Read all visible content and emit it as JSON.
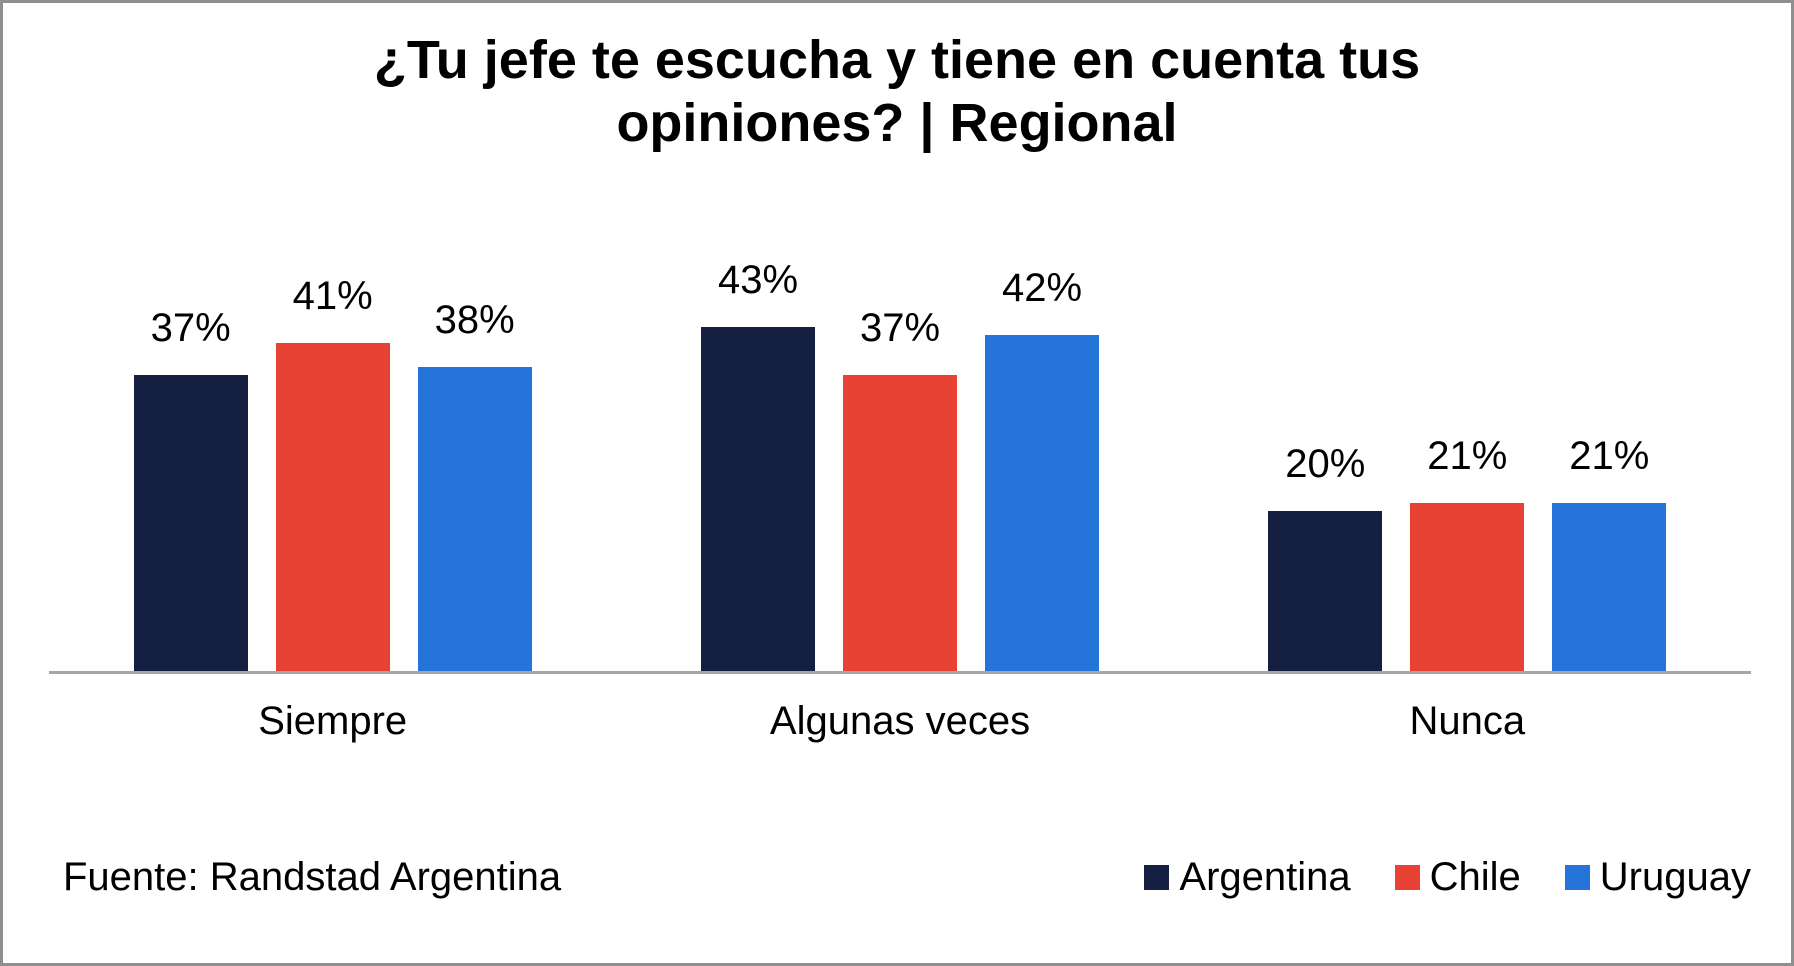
{
  "title": "¿Tu jefe te escucha y tiene en cuenta tus opiniones? | Regional",
  "source": "Fuente: Randstad Argentina",
  "chart_data": {
    "type": "bar",
    "title": "¿Tu jefe te escucha y tiene en cuenta tus opiniones? | Regional",
    "categories": [
      "Siempre",
      "Algunas veces",
      "Nunca"
    ],
    "series": [
      {
        "name": "Argentina",
        "color": "#151f42",
        "values": [
          37,
          43,
          20
        ],
        "labels": [
          "37%",
          "43%",
          "20%"
        ]
      },
      {
        "name": "Chile",
        "color": "#e84234",
        "values": [
          41,
          37,
          21
        ],
        "labels": [
          "41%",
          "37%",
          "21%"
        ]
      },
      {
        "name": "Uruguay",
        "color": "#2574d9",
        "values": [
          38,
          42,
          21
        ],
        "labels": [
          "38%",
          "42%",
          "21%"
        ]
      }
    ],
    "value_suffix": "%",
    "ylim": [
      0,
      50
    ],
    "grid": false,
    "data_labels": true,
    "y_axis_visible": false,
    "axis_color": "#a6a6a6",
    "legend_position": "bottom-right",
    "source_note": "Fuente: Randstad Argentina"
  }
}
